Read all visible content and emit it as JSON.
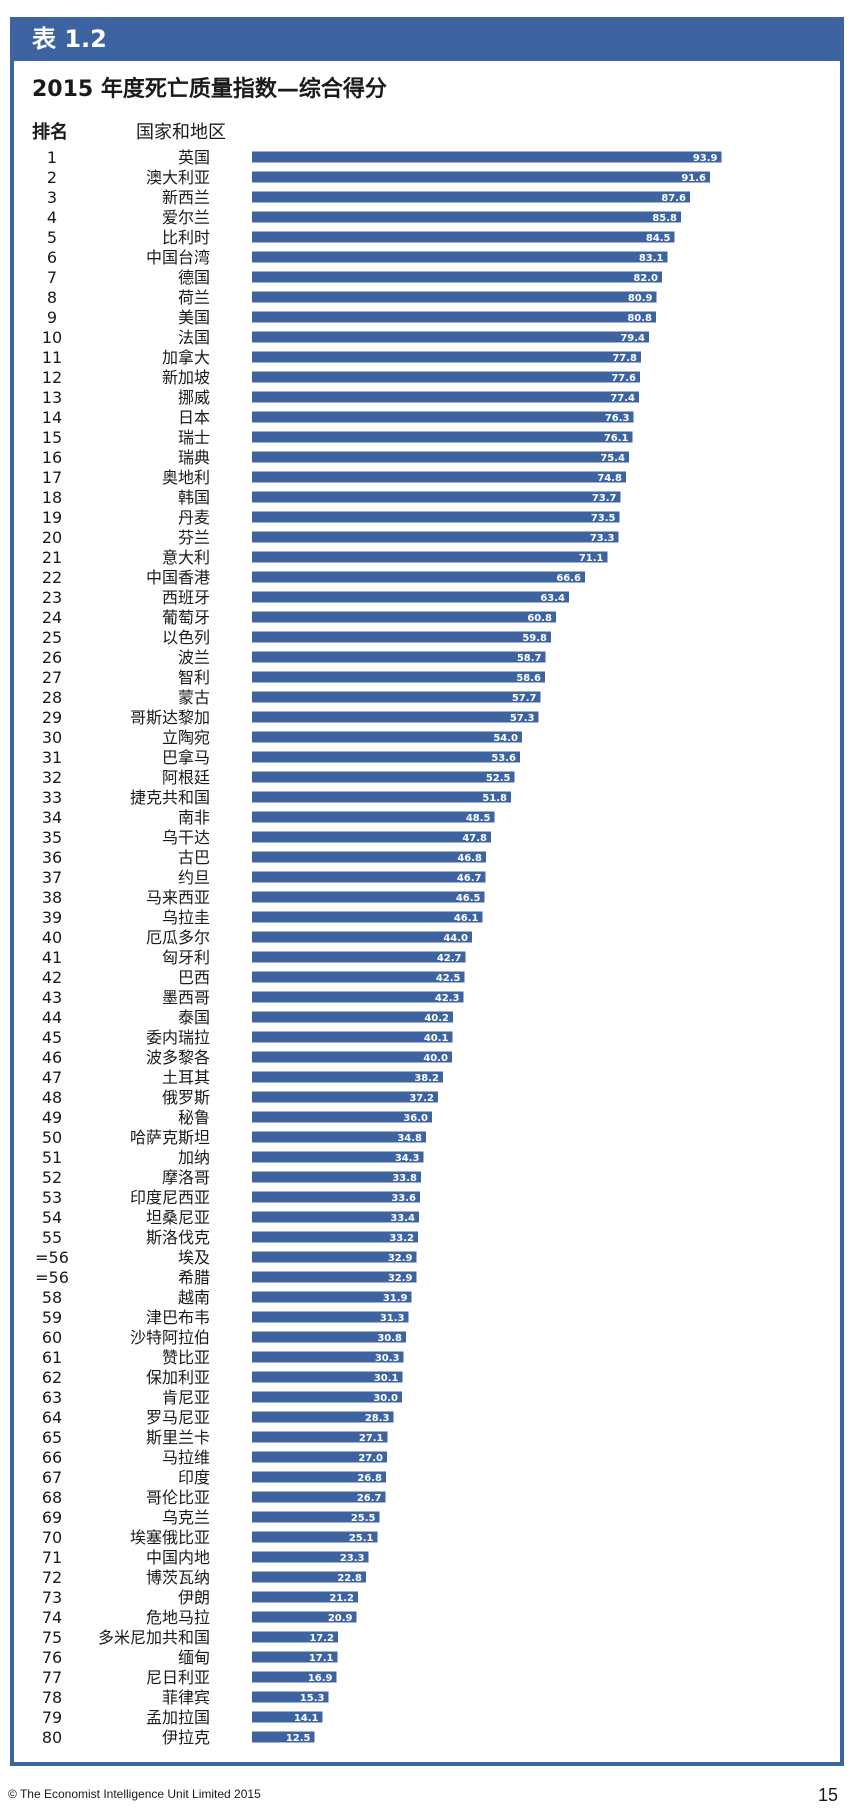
{
  "header": {
    "table_label": "表 1.2",
    "title": "2015 年度死亡质量指数—综合得分"
  },
  "columns": {
    "rank": "排名",
    "country": "国家和地区"
  },
  "colors": {
    "bar": "#3d63a1",
    "frame": "#3d63a1",
    "value_text": "#ffffff"
  },
  "chart_data": {
    "type": "bar",
    "orientation": "horizontal",
    "title": "2015 年度死亡质量指数—综合得分",
    "xlabel": "",
    "ylabel": "国家和地区",
    "xlim": [
      0,
      100
    ],
    "grid": false,
    "ranks": [
      "1",
      "2",
      "3",
      "4",
      "5",
      "6",
      "7",
      "8",
      "9",
      "10",
      "11",
      "12",
      "13",
      "14",
      "15",
      "16",
      "17",
      "18",
      "19",
      "20",
      "21",
      "22",
      "23",
      "24",
      "25",
      "26",
      "27",
      "28",
      "29",
      "30",
      "31",
      "32",
      "33",
      "34",
      "35",
      "36",
      "37",
      "38",
      "39",
      "40",
      "41",
      "42",
      "43",
      "44",
      "45",
      "46",
      "47",
      "48",
      "49",
      "50",
      "51",
      "52",
      "53",
      "54",
      "55",
      "=56",
      "=56",
      "58",
      "59",
      "60",
      "61",
      "62",
      "63",
      "64",
      "65",
      "66",
      "67",
      "68",
      "69",
      "70",
      "71",
      "72",
      "73",
      "74",
      "75",
      "76",
      "77",
      "78",
      "79",
      "80"
    ],
    "categories": [
      "英国",
      "澳大利亚",
      "新西兰",
      "爱尔兰",
      "比利时",
      "中国台湾",
      "德国",
      "荷兰",
      "美国",
      "法国",
      "加拿大",
      "新加坡",
      "挪威",
      "日本",
      "瑞士",
      "瑞典",
      "奥地利",
      "韩国",
      "丹麦",
      "芬兰",
      "意大利",
      "中国香港",
      "西班牙",
      "葡萄牙",
      "以色列",
      "波兰",
      "智利",
      "蒙古",
      "哥斯达黎加",
      "立陶宛",
      "巴拿马",
      "阿根廷",
      "捷克共和国",
      "南非",
      "乌干达",
      "古巴",
      "约旦",
      "马来西亚",
      "乌拉圭",
      "厄瓜多尔",
      "匈牙利",
      "巴西",
      "墨西哥",
      "泰国",
      "委内瑞拉",
      "波多黎各",
      "土耳其",
      "俄罗斯",
      "秘鲁",
      "哈萨克斯坦",
      "加纳",
      "摩洛哥",
      "印度尼西亚",
      "坦桑尼亚",
      "斯洛伐克",
      "埃及",
      "希腊",
      "越南",
      "津巴布韦",
      "沙特阿拉伯",
      "赞比亚",
      "保加利亚",
      "肯尼亚",
      "罗马尼亚",
      "斯里兰卡",
      "马拉维",
      "印度",
      "哥伦比亚",
      "乌克兰",
      "埃塞俄比亚",
      "中国内地",
      "博茨瓦纳",
      "伊朗",
      "危地马拉",
      "多米尼加共和国",
      "缅甸",
      "尼日利亚",
      "菲律宾",
      "孟加拉国",
      "伊拉克"
    ],
    "values": [
      "93.9",
      "91.6",
      "87.6",
      "85.8",
      "84.5",
      "83.1",
      "82.0",
      "80.9",
      "80.8",
      "79.4",
      "77.8",
      "77.6",
      "77.4",
      "76.3",
      "76.1",
      "75.4",
      "74.8",
      "73.7",
      "73.5",
      "73.3",
      "71.1",
      "66.6",
      "63.4",
      "60.8",
      "59.8",
      "58.7",
      "58.6",
      "57.7",
      "57.3",
      "54.0",
      "53.6",
      "52.5",
      "51.8",
      "48.5",
      "47.8",
      "46.8",
      "46.7",
      "46.5",
      "46.1",
      "44.0",
      "42.7",
      "42.5",
      "42.3",
      "40.2",
      "40.1",
      "40.0",
      "38.2",
      "37.2",
      "36.0",
      "34.8",
      "34.3",
      "33.8",
      "33.6",
      "33.4",
      "33.2",
      "32.9",
      "32.9",
      "31.9",
      "31.3",
      "30.8",
      "30.3",
      "30.1",
      "30.0",
      "28.3",
      "27.1",
      "27.0",
      "26.8",
      "26.7",
      "25.5",
      "25.1",
      "23.3",
      "22.8",
      "21.2",
      "20.9",
      "17.2",
      "17.1",
      "16.9",
      "15.3",
      "14.1",
      "12.5"
    ]
  },
  "footer": {
    "copyright": "© The Economist Intelligence Unit Limited 2015",
    "page_number": "15"
  }
}
